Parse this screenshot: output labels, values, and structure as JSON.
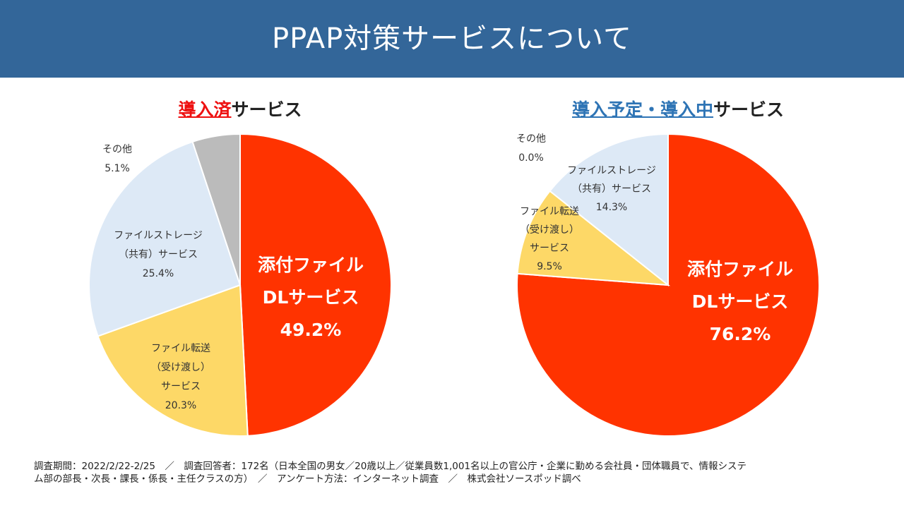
{
  "header": {
    "title": "PPAP対策サービスについて"
  },
  "colors": {
    "header_bg": "#336699",
    "attachment": "#ff3300",
    "storage": "#dde9f6",
    "transfer": "#fdd867",
    "other": "#bbbbbb",
    "highlight_red": "#ee1111",
    "highlight_blue": "#2e74b5"
  },
  "chart_data": [
    {
      "type": "pie",
      "title_highlight": "導入済",
      "title_rest": "サービス",
      "categories": [
        "添付ファイルDLサービス",
        "ファイル転送（受け渡し）サービス",
        "ファイルストレージ（共有）サービス",
        "その他"
      ],
      "values": [
        49.2,
        20.3,
        25.4,
        5.1
      ],
      "unit": "%",
      "labels": [
        {
          "lines": [
            "添付ファイル",
            "DLサービス"
          ],
          "value": "49.2%"
        },
        {
          "lines": [
            "ファイル転送",
            "（受け渡し）",
            "サービス"
          ],
          "value": "20.3%"
        },
        {
          "lines": [
            "ファイルストレージ",
            "（共有）サービス"
          ],
          "value": "25.4%"
        },
        {
          "lines": [
            "その他"
          ],
          "value": "5.1%"
        }
      ]
    },
    {
      "type": "pie",
      "title_highlight": "導入予定・導入中",
      "title_rest": "サービス",
      "categories": [
        "添付ファイルDLサービス",
        "ファイル転送（受け渡し）サービス",
        "ファイルストレージ（共有）サービス",
        "その他"
      ],
      "values": [
        76.2,
        9.5,
        14.3,
        0.0
      ],
      "unit": "%",
      "labels": [
        {
          "lines": [
            "添付ファイル",
            "DLサービス"
          ],
          "value": "76.2%"
        },
        {
          "lines": [
            "ファイル転送",
            "（受け渡し）",
            "サービス"
          ],
          "value": "9.5%"
        },
        {
          "lines": [
            "ファイルストレージ",
            "（共有）サービス"
          ],
          "value": "14.3%"
        },
        {
          "lines": [
            "その他"
          ],
          "value": "0.0%"
        }
      ]
    }
  ],
  "footer": {
    "line1": "調査期間：2022/2/22-2/25　／　調査回答者：172名（日本全国の男女／20歳以上／従業員数1,001名以上の官公庁・企業に勤める会社員・団体職員で、情報システ",
    "line2": "ム部の部長・次長・課長・係長・主任クラスの方）　／　アンケート方法：インターネット調査　／　株式会社ソースポッド調べ"
  }
}
